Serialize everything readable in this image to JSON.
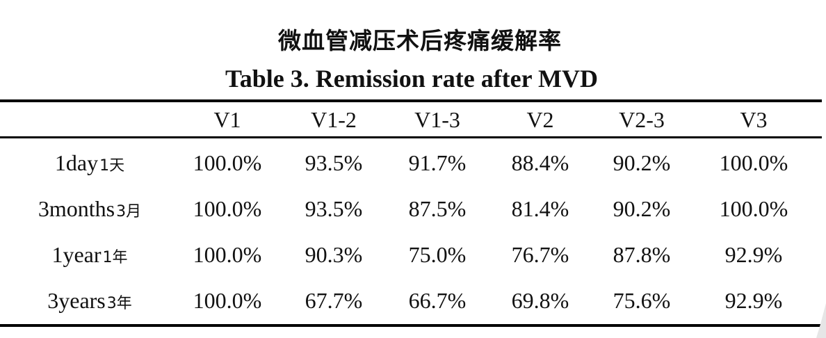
{
  "title_cn": "微血管减压术后疼痛缓解率",
  "title_en": "Table 3. Remission rate after MVD",
  "chart_data": {
    "type": "table",
    "columns": [
      "",
      "V1",
      "V1-2",
      "V1-3",
      "V2",
      "V2-3",
      "V3"
    ],
    "rows": [
      {
        "label_en": "1day",
        "label_cn": "1天",
        "values": [
          "100.0%",
          "93.5%",
          "91.7%",
          "88.4%",
          "90.2%",
          "100.0%"
        ]
      },
      {
        "label_en": "3months",
        "label_cn": "3月",
        "values": [
          "100.0%",
          "93.5%",
          "87.5%",
          "81.4%",
          "90.2%",
          "100.0%"
        ]
      },
      {
        "label_en": "1year",
        "label_cn": "1年",
        "values": [
          "100.0%",
          "90.3%",
          "75.0%",
          "76.7%",
          "87.8%",
          "92.9%"
        ]
      },
      {
        "label_en": "3years",
        "label_cn": "3年",
        "values": [
          "100.0%",
          "67.7%",
          "66.7%",
          "69.8%",
          "75.6%",
          "92.9%"
        ]
      }
    ]
  }
}
